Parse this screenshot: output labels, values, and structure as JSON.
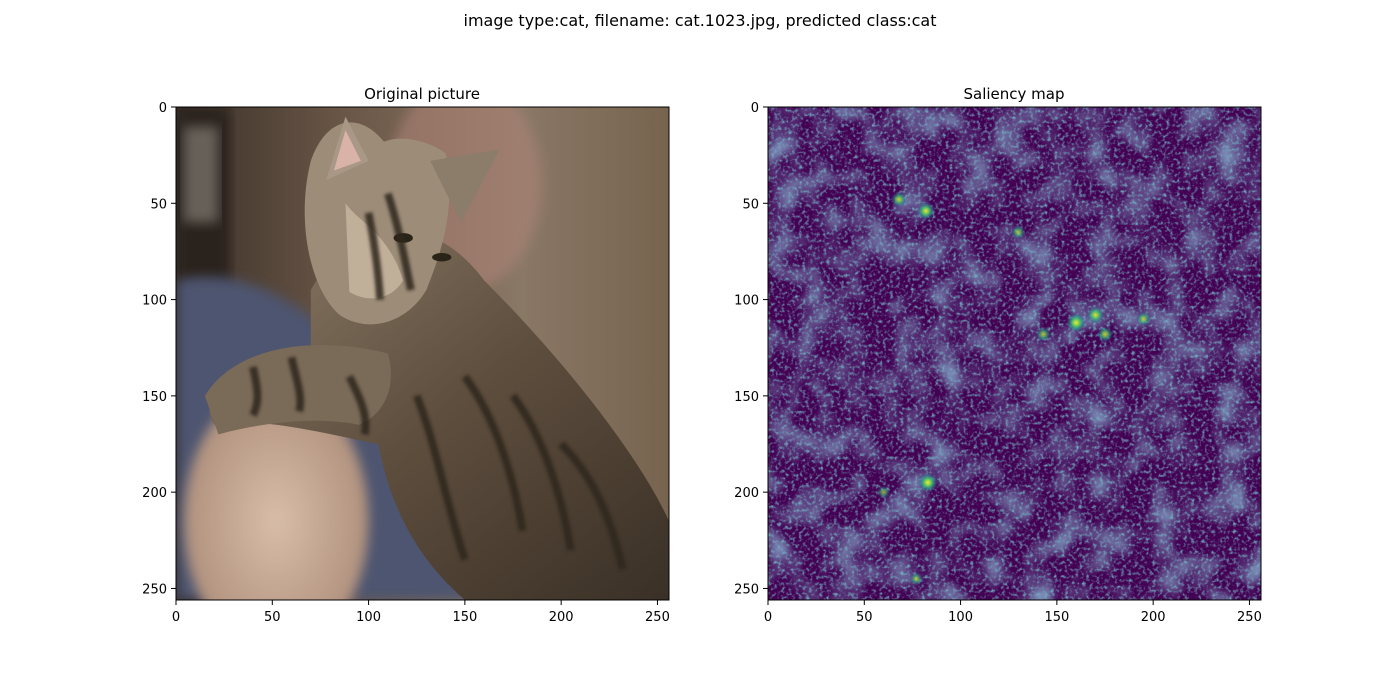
{
  "figure": {
    "suptitle": "image type:cat, filename: cat.1023.jpg, predicted class:cat"
  },
  "chart_data": [
    {
      "type": "heatmap",
      "title": "Original picture",
      "image_content": "photo of a tabby cat held on a person's shoulder",
      "xlim": [
        0,
        256
      ],
      "ylim": [
        256,
        0
      ],
      "xticks": [
        0,
        50,
        100,
        150,
        200,
        250
      ],
      "yticks": [
        0,
        50,
        100,
        150,
        200,
        250
      ],
      "grid": false,
      "colors": {
        "background_dark": "#3a2c22",
        "background_mid": "#6e5a48",
        "shirt": "#5d6580",
        "arm_skin": "#c8a892",
        "cat_fur_light": "#9a8a76",
        "cat_fur_dark": "#2e261e",
        "cat_face": "#b7a58f"
      }
    },
    {
      "type": "heatmap",
      "title": "Saliency map",
      "colormap": "viridis",
      "xlim": [
        0,
        256
      ],
      "ylim": [
        256,
        0
      ],
      "xticks": [
        0,
        50,
        100,
        150,
        200,
        250
      ],
      "yticks": [
        0,
        50,
        100,
        150,
        200,
        250
      ],
      "grid": false,
      "hotspots": [
        {
          "x": 82,
          "y": 54,
          "value": 0.9
        },
        {
          "x": 68,
          "y": 48,
          "value": 0.7
        },
        {
          "x": 160,
          "y": 112,
          "value": 1.0
        },
        {
          "x": 170,
          "y": 108,
          "value": 0.85
        },
        {
          "x": 175,
          "y": 118,
          "value": 0.7
        },
        {
          "x": 195,
          "y": 110,
          "value": 0.6
        },
        {
          "x": 143,
          "y": 118,
          "value": 0.6
        },
        {
          "x": 83,
          "y": 195,
          "value": 1.0
        },
        {
          "x": 130,
          "y": 65,
          "value": 0.55
        },
        {
          "x": 60,
          "y": 200,
          "value": 0.45
        },
        {
          "x": 77,
          "y": 245,
          "value": 0.5
        }
      ]
    }
  ]
}
